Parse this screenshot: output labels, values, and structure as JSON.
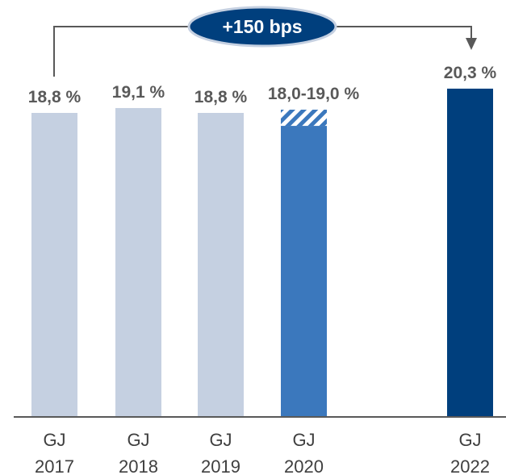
{
  "chart_data": {
    "type": "bar",
    "categories": [
      [
        "GJ",
        "2017"
      ],
      [
        "GJ",
        "2018"
      ],
      [
        "GJ",
        "2019"
      ],
      [
        "GJ",
        "2020"
      ],
      [
        "GJ",
        "2022"
      ]
    ],
    "values": [
      18.8,
      19.1,
      18.8,
      19.0,
      20.3
    ],
    "value_labels": [
      "18,8 %",
      "19,1 %",
      "18,8 %",
      "18,0-19,0 %",
      "20,3 %"
    ],
    "range_2020": {
      "low": 18.0,
      "high": 19.0
    },
    "annotation": "+150 bps",
    "colors": {
      "historic": "#c5d0e1",
      "forecast_solid": "#3b78bd",
      "forecast_hatch": "#3b78bd",
      "target": "#003f7d",
      "badge_fill": "#003f7d",
      "badge_border": "#c5d0e1",
      "axis": "#595959"
    }
  }
}
